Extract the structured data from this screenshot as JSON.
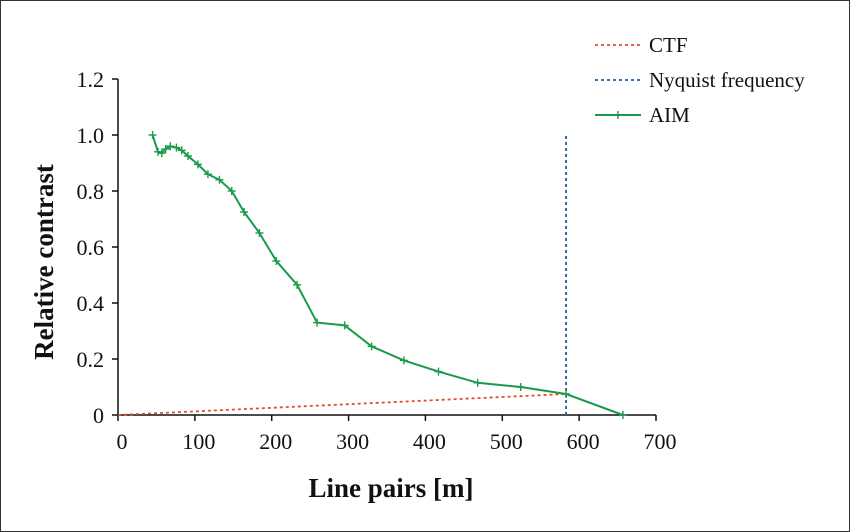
{
  "chart_data": {
    "type": "line",
    "xlabel": "Line pairs [m]",
    "ylabel": "Relative contrast",
    "xlim": [
      0,
      700
    ],
    "ylim": [
      0,
      1.2
    ],
    "xticks": [
      "0",
      "100",
      "200",
      "300",
      "400",
      "500",
      "600",
      "700"
    ],
    "yticks": [
      "0",
      "0.2",
      "0.4",
      "0.6",
      "0.8",
      "1.0",
      "1.2"
    ],
    "grid": false,
    "legend_position": "top-right",
    "series": [
      {
        "name": "CTF",
        "style": "dotted",
        "color": "#e0502a",
        "x": [
          0,
          583
        ],
        "y": [
          0.0,
          0.075
        ]
      },
      {
        "name": "Nyquist frequency",
        "style": "dotted",
        "color": "#1f5f9e",
        "x": [
          583,
          583
        ],
        "y": [
          0.0,
          1.0
        ]
      },
      {
        "name": "AIM",
        "style": "solid",
        "marker": "plus",
        "color": "#1a9a4a",
        "x": [
          45,
          52,
          57,
          62,
          68,
          76,
          83,
          91,
          104,
          117,
          132,
          148,
          164,
          184,
          206,
          233,
          259,
          295,
          330,
          372,
          417,
          468,
          524,
          583,
          657
        ],
        "y": [
          1.0,
          0.94,
          0.935,
          0.95,
          0.96,
          0.955,
          0.945,
          0.925,
          0.895,
          0.86,
          0.84,
          0.8,
          0.725,
          0.65,
          0.55,
          0.465,
          0.33,
          0.32,
          0.245,
          0.195,
          0.155,
          0.115,
          0.1,
          0.075,
          0.0
        ]
      }
    ]
  }
}
